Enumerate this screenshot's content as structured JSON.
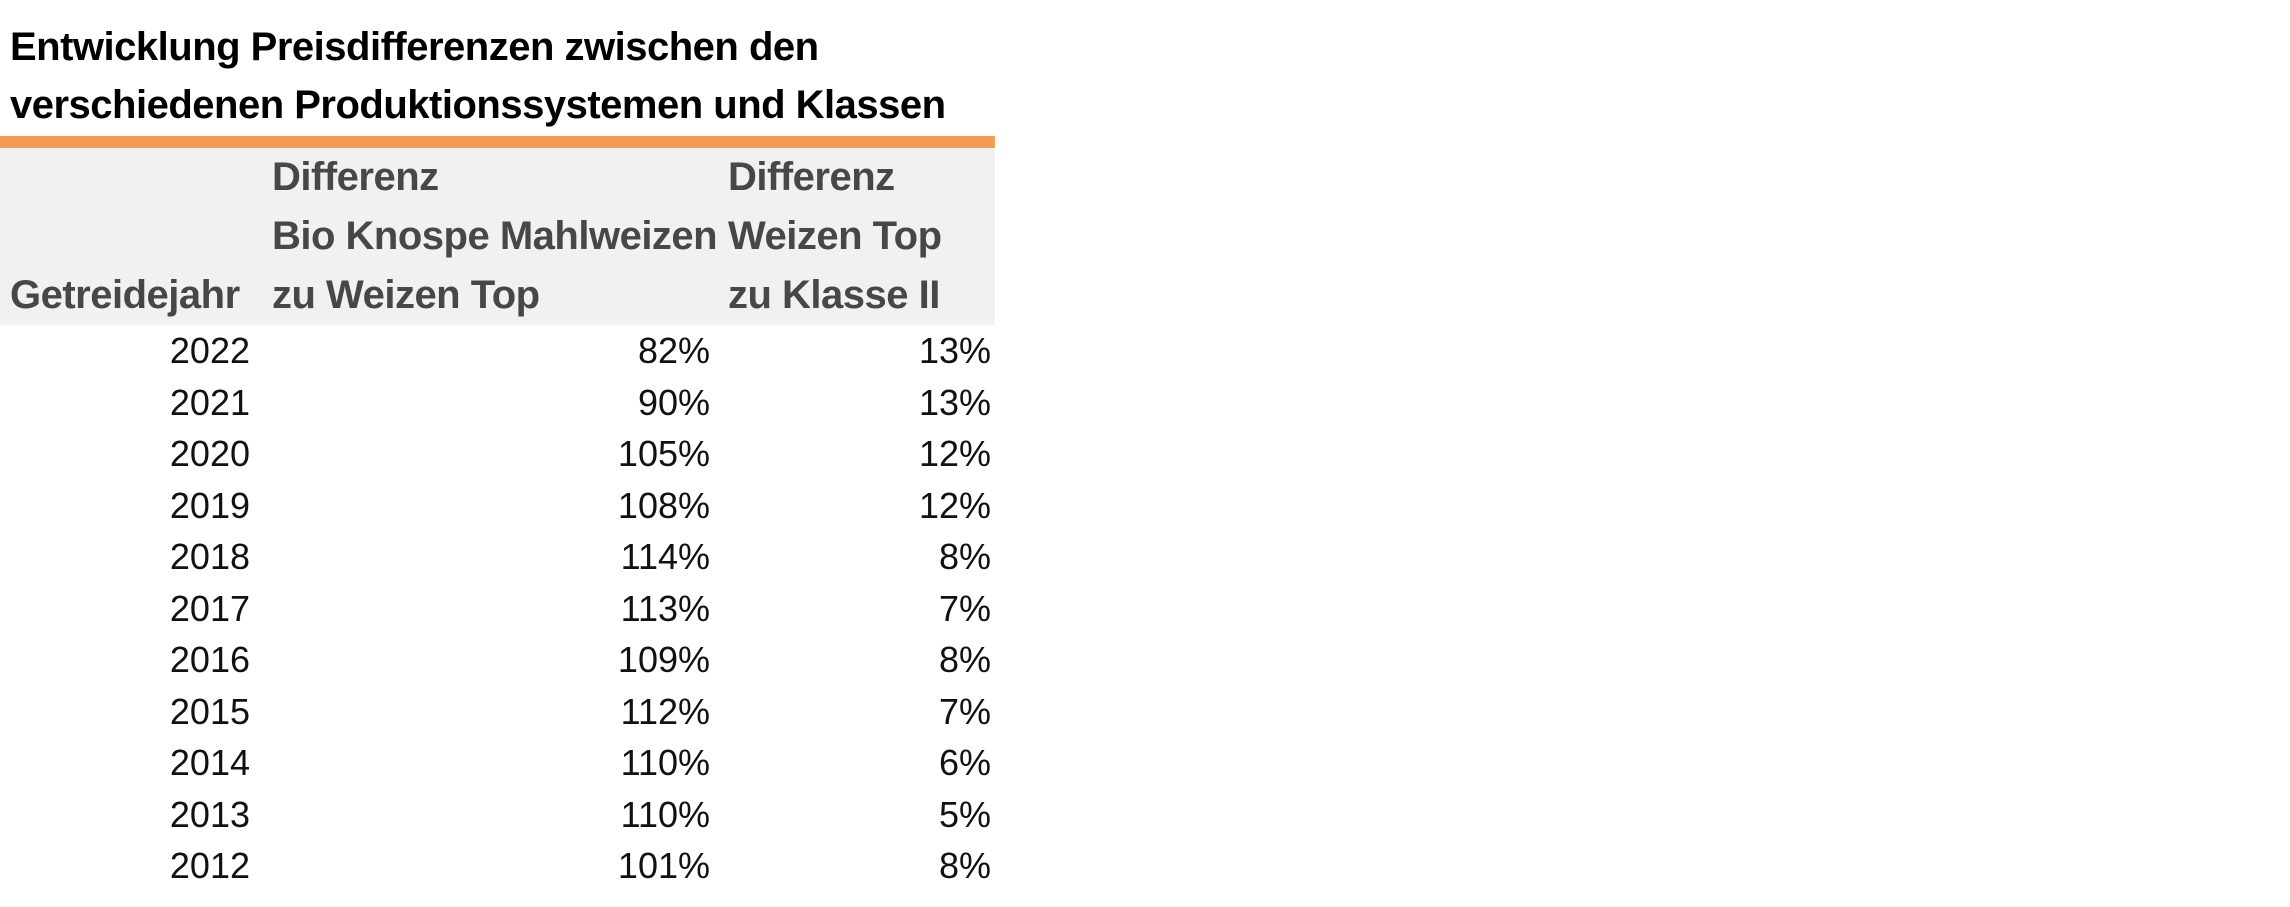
{
  "title": {
    "line1": "Entwicklung Preisdifferenzen zwischen den",
    "line2": "verschiedenen Produktionssystemen und Klassen"
  },
  "colors": {
    "accent_bar": "#F69C52",
    "header_background": "#F1F1F1",
    "header_text": "#474747",
    "body_text": "#111111",
    "title_text": "#000000"
  },
  "table": {
    "columns": [
      {
        "id": "getreidejahr",
        "header_lines": [
          "Getreidejahr"
        ]
      },
      {
        "id": "diff_bio_knospe",
        "header_lines": [
          "Differenz",
          "Bio Knospe Mahlweizen",
          "zu Weizen Top"
        ]
      },
      {
        "id": "diff_weizen_top",
        "header_lines": [
          "Differenz",
          "Weizen Top",
          "zu Klasse II"
        ]
      }
    ],
    "rows": [
      [
        "2022",
        "82%",
        "13%"
      ],
      [
        "2021",
        "90%",
        "13%"
      ],
      [
        "2020",
        "105%",
        "12%"
      ],
      [
        "2019",
        "108%",
        "12%"
      ],
      [
        "2018",
        "114%",
        "8%"
      ],
      [
        "2017",
        "113%",
        "7%"
      ],
      [
        "2016",
        "109%",
        "8%"
      ],
      [
        "2015",
        "112%",
        "7%"
      ],
      [
        "2014",
        "110%",
        "6%"
      ],
      [
        "2013",
        "110%",
        "5%"
      ],
      [
        "2012",
        "101%",
        "8%"
      ]
    ]
  },
  "chart_data": {
    "type": "table",
    "title": "Entwicklung Preisdifferenzen zwischen den verschiedenen Produktionssystemen und Klassen",
    "columns": [
      "Getreidejahr",
      "Differenz Bio Knospe Mahlweizen zu Weizen Top",
      "Differenz Weizen Top zu Klasse II"
    ],
    "categories": [
      2022,
      2021,
      2020,
      2019,
      2018,
      2017,
      2016,
      2015,
      2014,
      2013,
      2012
    ],
    "series": [
      {
        "name": "Differenz Bio Knospe Mahlweizen zu Weizen Top",
        "values": [
          82,
          90,
          105,
          108,
          114,
          113,
          109,
          112,
          110,
          110,
          101
        ],
        "unit": "%"
      },
      {
        "name": "Differenz Weizen Top zu Klasse II",
        "values": [
          13,
          13,
          12,
          12,
          8,
          7,
          8,
          7,
          6,
          5,
          8
        ],
        "unit": "%"
      }
    ],
    "layout_hints": {
      "header_background": "#F1F1F1",
      "accent_rule_color": "#F69C52",
      "numbers_right_aligned": true,
      "grid": false,
      "legend": "none"
    }
  }
}
